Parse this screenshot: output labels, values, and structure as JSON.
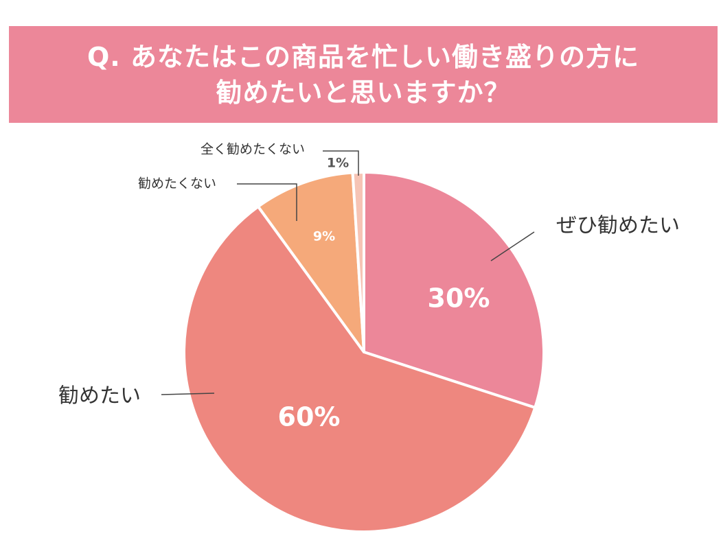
{
  "chart_data": {
    "type": "pie",
    "title": "Q. あなたはこの商品を忙しい働き盛りの方に\n勧めたいと思いますか？",
    "categories": [
      "ぜひ勧めたい",
      "勧めたい",
      "勧めたくない",
      "全く勧めたくない"
    ],
    "values": [
      30,
      60,
      9,
      1
    ],
    "value_labels": [
      "30%",
      "60%",
      "9%",
      "1%"
    ],
    "colors": [
      "#ec8799",
      "#ee877f",
      "#f5a97a",
      "#f6c4b5"
    ]
  }
}
